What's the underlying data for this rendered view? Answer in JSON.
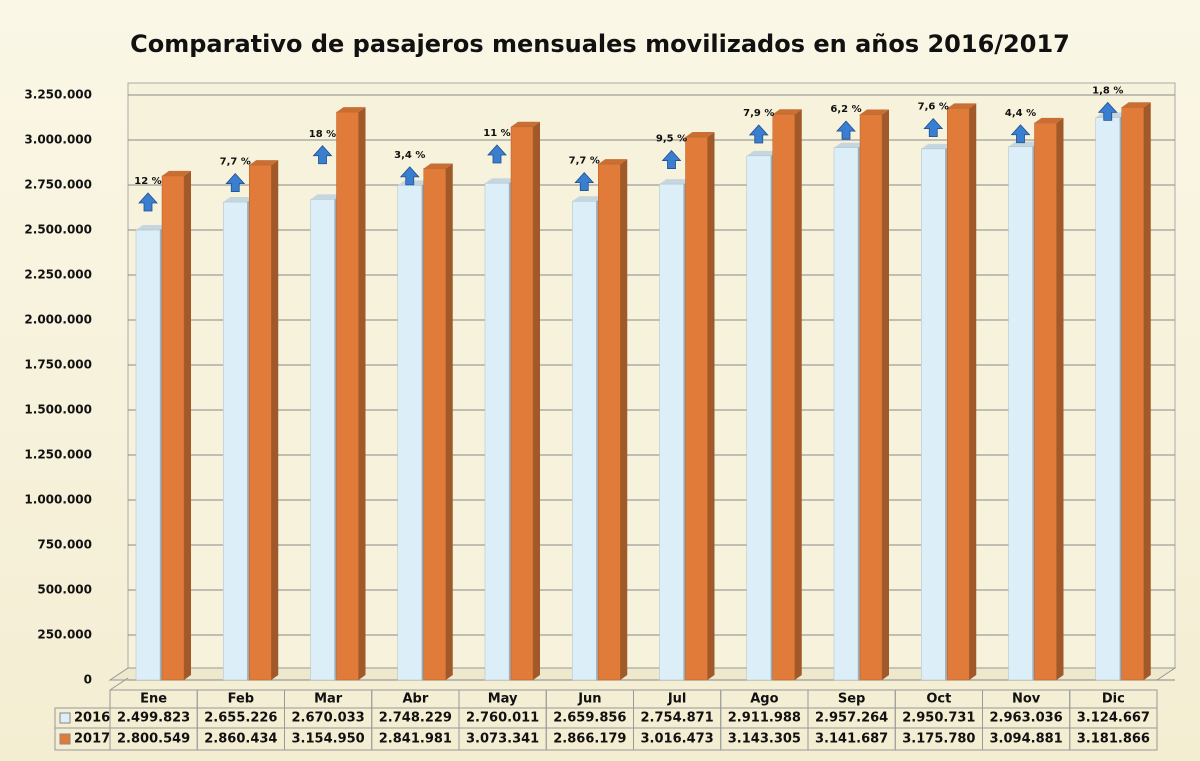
{
  "chart_data": {
    "type": "bar3d",
    "title": "Comparativo de pasajeros mensuales movilizados en años 2016/2017",
    "categories": [
      "Ene",
      "Feb",
      "Mar",
      "Abr",
      "May",
      "Jun",
      "Jul",
      "Ago",
      "Sep",
      "Oct",
      "Nov",
      "Dic"
    ],
    "series": [
      {
        "name": "2016",
        "color": "#dceef7",
        "values": [
          2499823,
          2655226,
          2670033,
          2748229,
          2760011,
          2659856,
          2754871,
          2911988,
          2957264,
          2950731,
          2963036,
          3124667
        ],
        "value_labels": [
          "2.499.823",
          "2.655.226",
          "2.670.033",
          "2.748.229",
          "2.760.011",
          "2.659.856",
          "2.754.871",
          "2.911.988",
          "2.957.264",
          "2.950.731",
          "2.963.036",
          "3.124.667"
        ]
      },
      {
        "name": "2017",
        "color": "#e07b39",
        "values": [
          2800549,
          2860434,
          3154950,
          2841981,
          3073341,
          2866179,
          3016473,
          3143305,
          3141687,
          3175780,
          3094881,
          3181866
        ],
        "value_labels": [
          "2.800.549",
          "2.860.434",
          "3.154.950",
          "2.841.981",
          "3.073.341",
          "2.866.179",
          "3.016.473",
          "3.143.305",
          "3.141.687",
          "3.175.780",
          "3.094.881",
          "3.181.866"
        ]
      }
    ],
    "annotations": [
      "12 %",
      "7,7 %",
      "18 %",
      "3,4 %",
      "11 %",
      "7,7 %",
      "9,5 %",
      "7,9 %",
      "6,2 %",
      "7,6 %",
      "4,4 %",
      "1,8 %"
    ],
    "ylim": [
      0,
      3250000
    ],
    "yticks": [
      0,
      {
        "value": 250000,
        "label": "250.000"
      },
      {
        "value": 500000,
        "label": "500.000"
      },
      {
        "value": 750000,
        "label": "750.000"
      },
      {
        "value": 1000000,
        "label": "1.000.000"
      },
      {
        "value": 1250000,
        "label": "1.250.000"
      },
      {
        "value": 1500000,
        "label": "1.500.000"
      },
      {
        "value": 1750000,
        "label": "1.750.000"
      },
      {
        "value": 2000000,
        "label": "2.000.000"
      },
      {
        "value": 2250000,
        "label": "2.250.000"
      },
      {
        "value": 2500000,
        "label": "2.500.000"
      },
      {
        "value": 2750000,
        "label": "2.750.000"
      },
      {
        "value": 3000000,
        "label": "3.000.000"
      },
      {
        "value": 3250000,
        "label": "3.250.000"
      }
    ],
    "grid": true
  }
}
